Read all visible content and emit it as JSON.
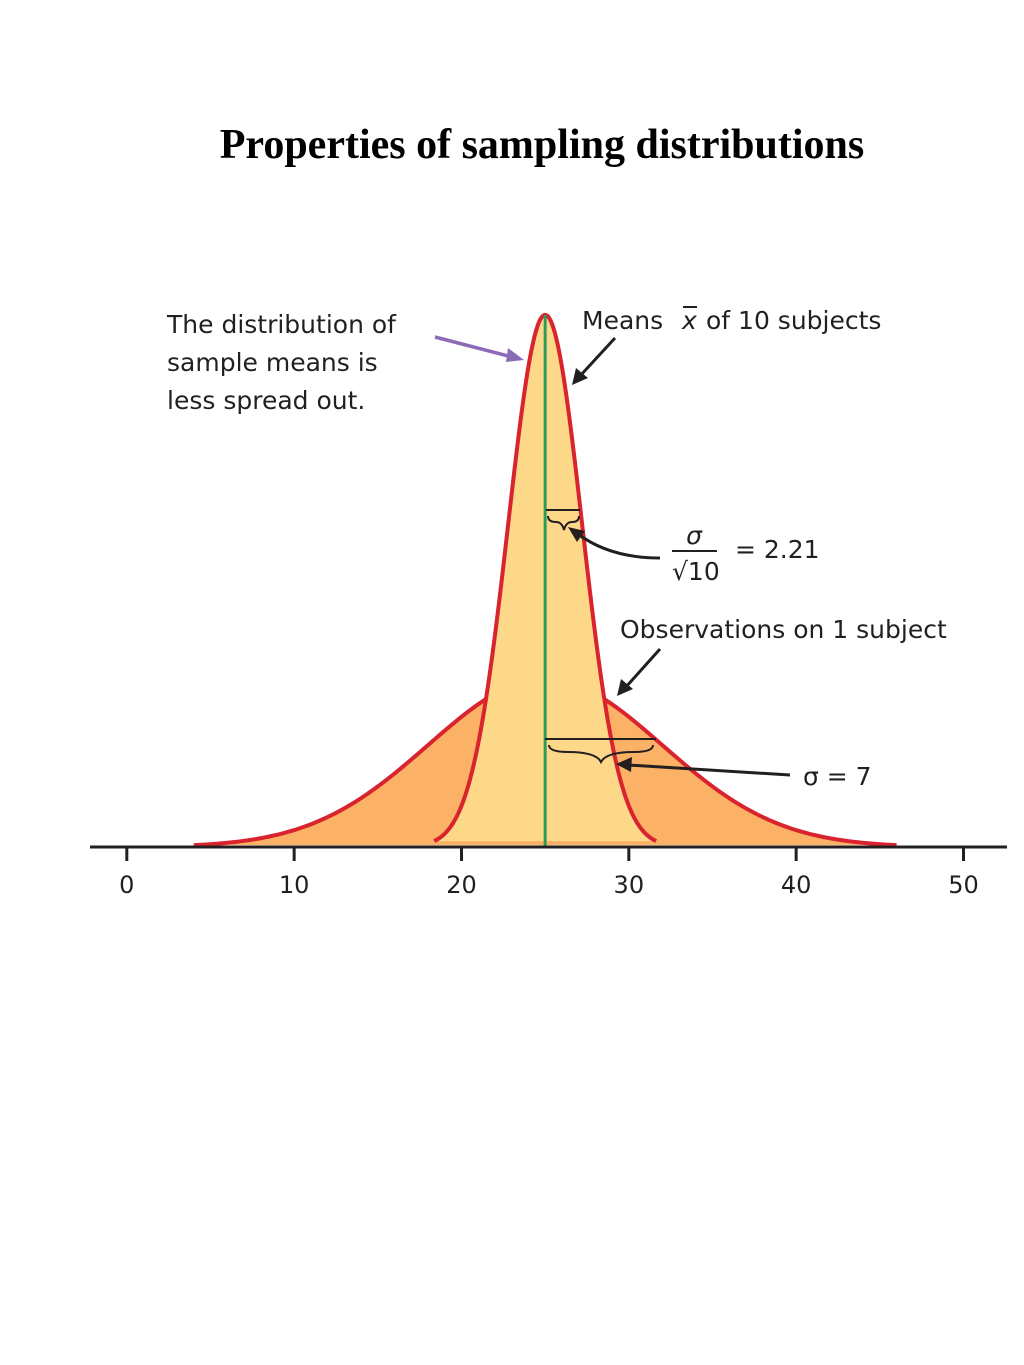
{
  "title": "Properties of sampling distributions",
  "chart_data": {
    "type": "normal-density",
    "xlim": [
      -2.2,
      52.6
    ],
    "xticks": [
      0,
      10,
      20,
      30,
      40,
      50
    ],
    "series": [
      {
        "color": "#fbb266",
        "line_color": "#d9232e",
        "mean": 25,
        "sd": 7
      },
      {
        "color": "#fdd888",
        "line_color": "#d9232e",
        "mean": 25,
        "sd": 2.21
      }
    ],
    "mean_line_color": "#2a9d5c",
    "annotations": {
      "spread": [
        "The distribution of",
        "sample means is",
        "less spread out."
      ],
      "means": [
        "Means",
        "x",
        "of 10 subjects"
      ],
      "se": {
        "numerator": "σ",
        "denominator": "√10",
        "result": "= 2.21"
      },
      "observations": "Observations on 1 subject",
      "sd": "σ = 7"
    }
  }
}
